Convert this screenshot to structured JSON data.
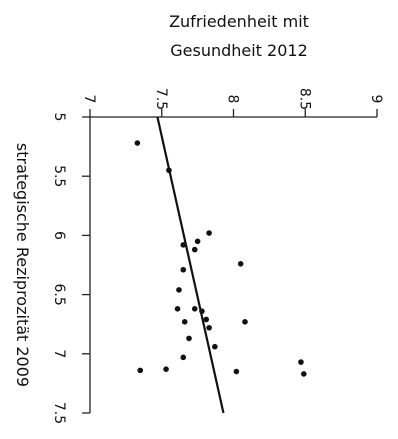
{
  "chart_data": {
    "type": "scatter",
    "title_lines": [
      "Zufriedenheit mit",
      "Gesundheit 2012"
    ],
    "xlabel": "strategische Reziprozität 2009",
    "ylabel": "Zufriedenheit mit Gesundheit 2012",
    "x_ticks": [
      "5",
      "5.5",
      "6",
      "6.5",
      "7",
      "7.5"
    ],
    "y_ticks": [
      "7",
      "7.5",
      "8",
      "8.5",
      "9"
    ],
    "xlim": [
      5,
      7.5
    ],
    "ylim": [
      7,
      9
    ],
    "points": [
      {
        "x": 5.22,
        "y": 7.33
      },
      {
        "x": 5.45,
        "y": 7.55
      },
      {
        "x": 6.08,
        "y": 7.65
      },
      {
        "x": 6.05,
        "y": 7.75
      },
      {
        "x": 6.12,
        "y": 7.73
      },
      {
        "x": 5.98,
        "y": 7.83
      },
      {
        "x": 6.24,
        "y": 8.05
      },
      {
        "x": 6.29,
        "y": 7.65
      },
      {
        "x": 6.46,
        "y": 7.62
      },
      {
        "x": 6.62,
        "y": 7.73
      },
      {
        "x": 6.62,
        "y": 7.61
      },
      {
        "x": 6.64,
        "y": 7.78
      },
      {
        "x": 6.71,
        "y": 7.81
      },
      {
        "x": 6.73,
        "y": 7.66
      },
      {
        "x": 6.78,
        "y": 7.83
      },
      {
        "x": 6.73,
        "y": 8.08
      },
      {
        "x": 6.87,
        "y": 7.69
      },
      {
        "x": 6.94,
        "y": 7.87
      },
      {
        "x": 7.03,
        "y": 7.65
      },
      {
        "x": 7.07,
        "y": 8.47
      },
      {
        "x": 7.14,
        "y": 7.35
      },
      {
        "x": 7.13,
        "y": 7.53
      },
      {
        "x": 7.15,
        "y": 8.02
      },
      {
        "x": 7.17,
        "y": 8.49
      }
    ],
    "trendline": [
      {
        "x": 5,
        "y": 7.47
      },
      {
        "x": 7.5,
        "y": 7.93
      }
    ],
    "legend": "none",
    "grid": false
  }
}
